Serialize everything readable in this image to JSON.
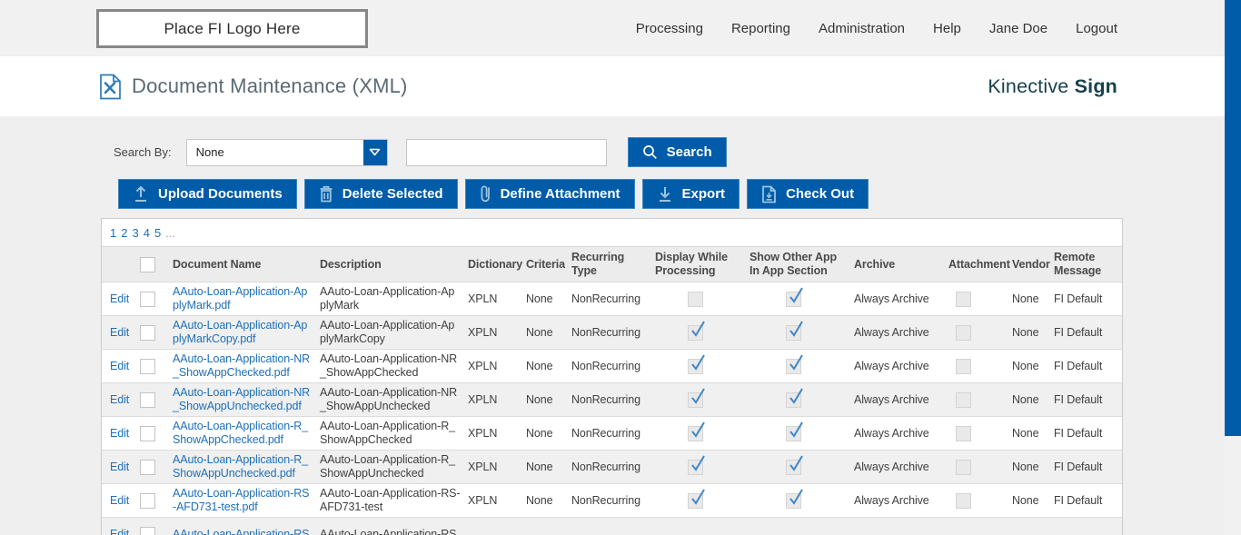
{
  "topbar": {
    "logo_placeholder": "Place FI Logo Here",
    "nav_items": [
      "Processing",
      "Reporting",
      "Administration",
      "Help",
      "Jane Doe",
      "Logout"
    ]
  },
  "titlebar": {
    "title": "Document Maintenance (XML)",
    "brand_name": "Kinective ",
    "brand_product": "Sign"
  },
  "search": {
    "label": "Search By:",
    "selected_option": "None",
    "input_value": "",
    "button_label": "Search"
  },
  "actions": [
    {
      "label": "Upload Documents",
      "icon": "upload-icon"
    },
    {
      "label": "Delete Selected",
      "icon": "trash-icon"
    },
    {
      "label": "Define Attachment",
      "icon": "paperclip-icon"
    },
    {
      "label": "Export",
      "icon": "download-icon"
    },
    {
      "label": "Check Out",
      "icon": "checkout-document-icon"
    }
  ],
  "pagination": {
    "pages": [
      "1",
      "2",
      "3",
      "4",
      "5"
    ],
    "ellipsis": "..."
  },
  "table": {
    "edit_label": "Edit",
    "columns": [
      "Document Name",
      "Description",
      "Dictionary",
      "Criteria",
      "Recurring Type",
      "Display While Processing",
      "Show Other App In App Section",
      "Archive",
      "Attachment",
      "Vendor",
      "Remote Message"
    ],
    "rows": [
      {
        "document_name": "AAuto-Loan-Application-ApplyMark.pdf",
        "description": "AAuto-Loan-Application-ApplyMark",
        "dictionary": "XPLN",
        "criteria": "None",
        "recurring_type": "NonRecurring",
        "display_while_processing": false,
        "show_other_app": true,
        "archive": "Always Archive",
        "attachment": false,
        "vendor": "None",
        "remote_message": "FI Default",
        "partial": false
      },
      {
        "document_name": "AAuto-Loan-Application-ApplyMarkCopy.pdf",
        "description": "AAuto-Loan-Application-ApplyMarkCopy",
        "dictionary": "XPLN",
        "criteria": "None",
        "recurring_type": "NonRecurring",
        "display_while_processing": true,
        "show_other_app": true,
        "archive": "Always Archive",
        "attachment": false,
        "vendor": "None",
        "remote_message": "FI Default",
        "partial": false
      },
      {
        "document_name": "AAuto-Loan-Application-NR_ShowAppChecked.pdf",
        "description": "AAuto-Loan-Application-NR_ShowAppChecked",
        "dictionary": "XPLN",
        "criteria": "None",
        "recurring_type": "NonRecurring",
        "display_while_processing": true,
        "show_other_app": true,
        "archive": "Always Archive",
        "attachment": false,
        "vendor": "None",
        "remote_message": "FI Default",
        "partial": false
      },
      {
        "document_name": "AAuto-Loan-Application-NR_ShowAppUnchecked.pdf",
        "description": "AAuto-Loan-Application-NR_ShowAppUnchecked",
        "dictionary": "XPLN",
        "criteria": "None",
        "recurring_type": "NonRecurring",
        "display_while_processing": true,
        "show_other_app": true,
        "archive": "Always Archive",
        "attachment": false,
        "vendor": "None",
        "remote_message": "FI Default",
        "partial": false
      },
      {
        "document_name": "AAuto-Loan-Application-R_ShowAppChecked.pdf",
        "description": "AAuto-Loan-Application-R_ShowAppChecked",
        "dictionary": "XPLN",
        "criteria": "None",
        "recurring_type": "NonRecurring",
        "display_while_processing": true,
        "show_other_app": true,
        "archive": "Always Archive",
        "attachment": false,
        "vendor": "None",
        "remote_message": "FI Default",
        "partial": false
      },
      {
        "document_name": "AAuto-Loan-Application-R_ShowAppUnchecked.pdf",
        "description": "AAuto-Loan-Application-R_ShowAppUnchecked",
        "dictionary": "XPLN",
        "criteria": "None",
        "recurring_type": "NonRecurring",
        "display_while_processing": true,
        "show_other_app": true,
        "archive": "Always Archive",
        "attachment": false,
        "vendor": "None",
        "remote_message": "FI Default",
        "partial": false
      },
      {
        "document_name": "AAuto-Loan-Application-RS-AFD731-test.pdf",
        "description": "AAuto-Loan-Application-RS-AFD731-test",
        "dictionary": "XPLN",
        "criteria": "None",
        "recurring_type": "NonRecurring",
        "display_while_processing": true,
        "show_other_app": true,
        "archive": "Always Archive",
        "attachment": false,
        "vendor": "None",
        "remote_message": "FI Default",
        "partial": false
      },
      {
        "document_name": "AAuto-Loan-Application-RS",
        "description": "AAuto-Loan-Application-RS",
        "dictionary": "",
        "criteria": "",
        "recurring_type": "",
        "display_while_processing": null,
        "show_other_app": null,
        "archive": "",
        "attachment": null,
        "vendor": "",
        "remote_message": "",
        "partial": true
      }
    ]
  },
  "colors": {
    "primary_blue": "#005ca8",
    "link_blue": "#1e6fb8",
    "brand_navy": "#15404f",
    "button_icon_tint": "#9cc3e0",
    "check_blue": "#3f87c5",
    "page_background": "#efefef"
  }
}
